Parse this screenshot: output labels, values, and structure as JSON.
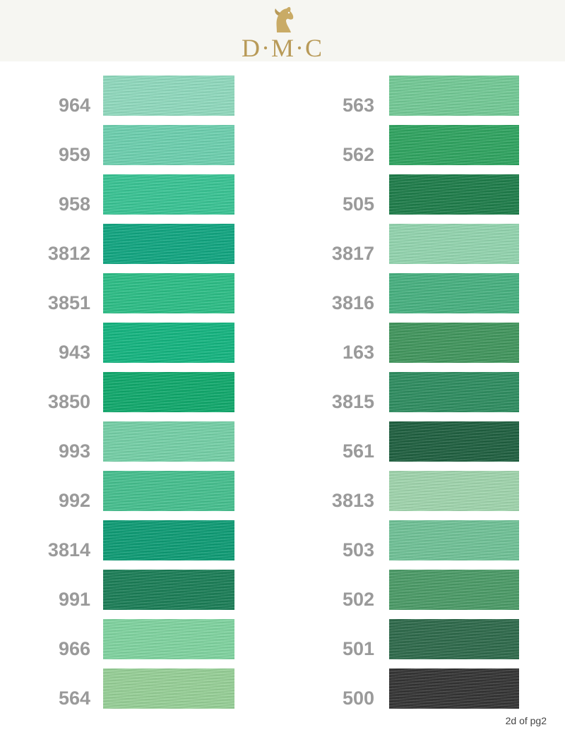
{
  "header": {
    "brand": "D·M·C",
    "logo_icon": "horse-head-icon"
  },
  "left_column": [
    {
      "code": "964",
      "color": "#8fd9bd"
    },
    {
      "code": "959",
      "color": "#6ccfae"
    },
    {
      "code": "958",
      "color": "#38c393"
    },
    {
      "code": "3812",
      "color": "#10a580"
    },
    {
      "code": "3851",
      "color": "#2bbd85"
    },
    {
      "code": "943",
      "color": "#13b47f"
    },
    {
      "code": "3850",
      "color": "#0fa86b"
    },
    {
      "code": "993",
      "color": "#74cfa6"
    },
    {
      "code": "992",
      "color": "#45bf8e"
    },
    {
      "code": "3814",
      "color": "#0d9b74"
    },
    {
      "code": "991",
      "color": "#1a7d56"
    },
    {
      "code": "966",
      "color": "#7fd39f"
    },
    {
      "code": "564",
      "color": "#96cf96"
    }
  ],
  "right_column": [
    {
      "code": "563",
      "color": "#72c995"
    },
    {
      "code": "562",
      "color": "#2ea35f"
    },
    {
      "code": "505",
      "color": "#1d7c49"
    },
    {
      "code": "3817",
      "color": "#92d4ae"
    },
    {
      "code": "3816",
      "color": "#46b07f"
    },
    {
      "code": "163",
      "color": "#40955c"
    },
    {
      "code": "3815",
      "color": "#2d8c5f"
    },
    {
      "code": "561",
      "color": "#1e5f3f"
    },
    {
      "code": "3813",
      "color": "#9fd4ac"
    },
    {
      "code": "503",
      "color": "#6fc196"
    },
    {
      "code": "502",
      "color": "#4a9a66"
    },
    {
      "code": "501",
      "color": "#2d694a"
    },
    {
      "code": "500",
      "color": "#333333"
    }
  ],
  "footnote": "2d of pg2"
}
